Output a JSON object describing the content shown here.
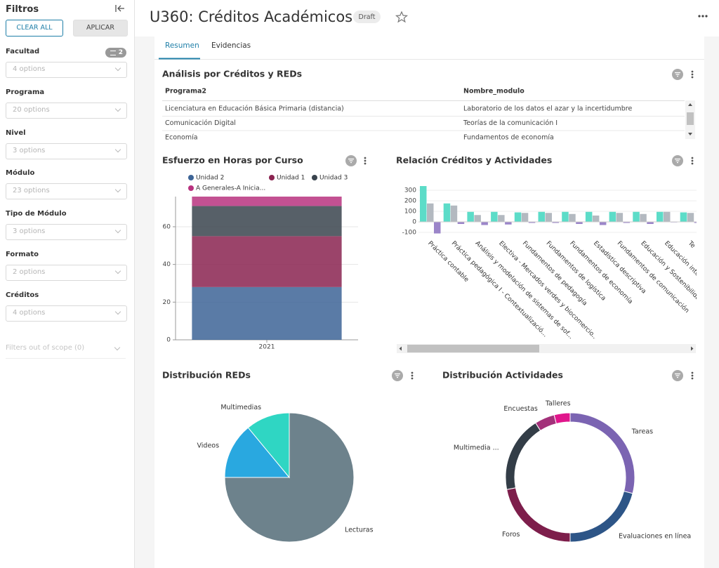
{
  "sidebar": {
    "title": "Filtros",
    "clear_all": "CLEAR ALL",
    "apply": "APLICAR",
    "filters": [
      {
        "label": "Facultad",
        "placeholder": "4 options",
        "badge": 2
      },
      {
        "label": "Programa",
        "placeholder": "20 options"
      },
      {
        "label": "Nivel",
        "placeholder": "3 options"
      },
      {
        "label": "Módulo",
        "placeholder": "23 options"
      },
      {
        "label": "Tipo de Módulo",
        "placeholder": "3 options"
      },
      {
        "label": "Formato",
        "placeholder": "2 options"
      },
      {
        "label": "Créditos",
        "placeholder": "4 options"
      }
    ],
    "out_of_scope": "Filters out of scope (0)"
  },
  "header": {
    "title": "U360: Créditos Académicos",
    "status": "Draft"
  },
  "tabs": [
    "Resumen",
    "Evidencias"
  ],
  "table": {
    "title": "Análisis por Créditos y REDs",
    "columns": [
      "Programa2",
      "Nombre_modulo"
    ],
    "rows": [
      [
        "Licenciatura en Educación Básica Primaria (distancia)",
        "Laboratorio de los datos el azar y la incertidumbre"
      ],
      [
        "Comunicación Digital",
        "Teorías de la comunicación I"
      ],
      [
        "Economía",
        "Fundamentos de economía"
      ]
    ]
  },
  "chart_data": [
    {
      "type": "bar",
      "stacked": true,
      "title": "Esfuerzo en Horas por Curso",
      "categories": [
        "2021"
      ],
      "series": [
        {
          "name": "Unidad 2",
          "color": "#3d6496",
          "values": [
            28
          ]
        },
        {
          "name": "Unidad 1",
          "color": "#8a2350",
          "values": [
            27
          ]
        },
        {
          "name": "Unidad 3",
          "color": "#3a444e",
          "values": [
            16
          ]
        },
        {
          "name": "A Generales-A Inicia...",
          "color": "#b8327f",
          "values": [
            5
          ]
        }
      ],
      "ylim": [
        0,
        76
      ],
      "yticks": [
        0,
        20,
        40,
        60
      ],
      "grid": true
    },
    {
      "type": "bar",
      "stacked": false,
      "title": "Relación Créditos y Actividades",
      "categories": [
        "Práctica contable",
        "Práctica pedagógica I - Contextualizació...",
        "Análisis y modelación de sistemas de sof...",
        "Electiva - Mercados verdes y biocomercio...",
        "Fundamentos de pedagogía",
        "Fundamentos de logística",
        "Fundamentos de economía",
        "Estadística descriptiva",
        "Fundamentos de comunicación",
        "Educación y Sostenibilidad",
        "Educación inte",
        "Te"
      ],
      "series": [
        {
          "color": "#5cdcc8",
          "values": [
            340,
            175,
            95,
            95,
            90,
            95,
            95,
            95,
            95,
            95,
            95,
            90
          ]
        },
        {
          "color": "#b3b9c0",
          "values": [
            175,
            155,
            65,
            65,
            85,
            85,
            75,
            60,
            85,
            75,
            95,
            85
          ]
        },
        {
          "color": "#9b85c9",
          "values": [
            -110,
            -20,
            -30,
            -25,
            -10,
            -10,
            -20,
            -30,
            -10,
            -20,
            -5,
            -10
          ]
        }
      ],
      "ylim": [
        -130,
        350
      ],
      "yticks": [
        -100,
        0,
        100,
        200,
        300
      ],
      "grid": true
    },
    {
      "type": "pie",
      "donut": false,
      "title": "Distribución REDs",
      "categories": [
        "Lecturas",
        "Videos",
        "Multimedias"
      ],
      "values": [
        75,
        14,
        11
      ],
      "colors": [
        "#6d828c",
        "#29a8e0",
        "#2fd6c3"
      ]
    },
    {
      "type": "pie",
      "donut": true,
      "title": "Distribución Actividades",
      "categories": [
        "Tareas",
        "Evaluaciones en línea",
        "Foros",
        "Multimedia ...",
        "Encuestas",
        "Talleres"
      ],
      "values": [
        29,
        21,
        22,
        19,
        5,
        4
      ],
      "colors": [
        "#7b64b2",
        "#2d5587",
        "#7d1e4b",
        "#333d47",
        "#a3317a",
        "#e0168c"
      ]
    }
  ]
}
